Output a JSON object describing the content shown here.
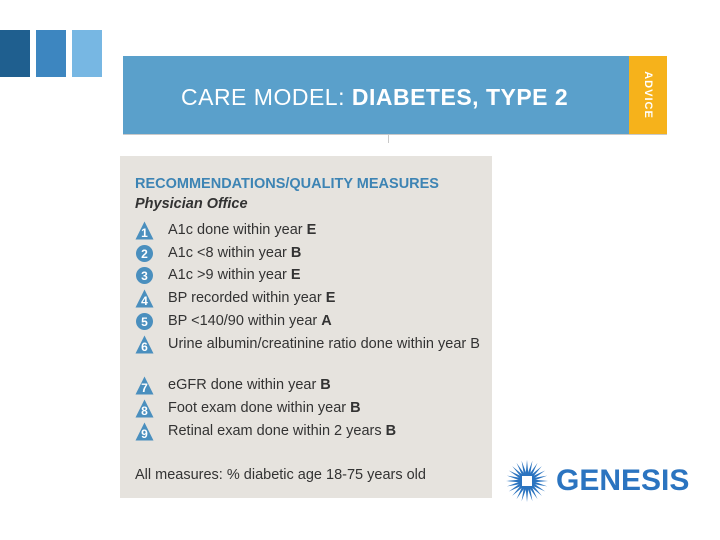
{
  "banner": {
    "title_prefix": "CARE MODEL: ",
    "title_bold": "DIABETES, TYPE 2",
    "tab": "ADVICE",
    "colors": {
      "banner": "#5aa0cb",
      "tab": "#f6b21b"
    }
  },
  "panel": {
    "heading": "RECOMMENDATIONS/QUALITY MEASURES",
    "subheading": "Physician Office",
    "measures": [
      {
        "num": "1",
        "text": "A1c done within year",
        "grade": "E",
        "shape": "triangle"
      },
      {
        "num": "2",
        "text": "A1c <8 within year",
        "grade": "B",
        "shape": "circle"
      },
      {
        "num": "3",
        "text": "A1c >9 within year",
        "grade": "E",
        "shape": "circle"
      },
      {
        "num": "4",
        "text": "BP recorded within year",
        "grade": "E",
        "shape": "triangle"
      },
      {
        "num": "5",
        "text": "BP <140/90 within year",
        "grade": "A",
        "shape": "circle"
      },
      {
        "num": "6",
        "text": "Urine albumin/creatinine ratio done within year B",
        "grade": "",
        "shape": "triangle"
      },
      {
        "num": "7",
        "text": "eGFR done within year",
        "grade": "B",
        "shape": "triangle"
      },
      {
        "num": "8",
        "text": "Foot exam done within year",
        "grade": "B",
        "shape": "triangle"
      },
      {
        "num": "9",
        "text": "Retinal exam done within 2 years",
        "grade": "B",
        "shape": "triangle"
      }
    ],
    "footer": "All measures: % diabetic age 18-75 years old",
    "badge_color": "#4a8fbe"
  },
  "logo": {
    "word": "GENESIS",
    "color": "#2b74c0"
  }
}
